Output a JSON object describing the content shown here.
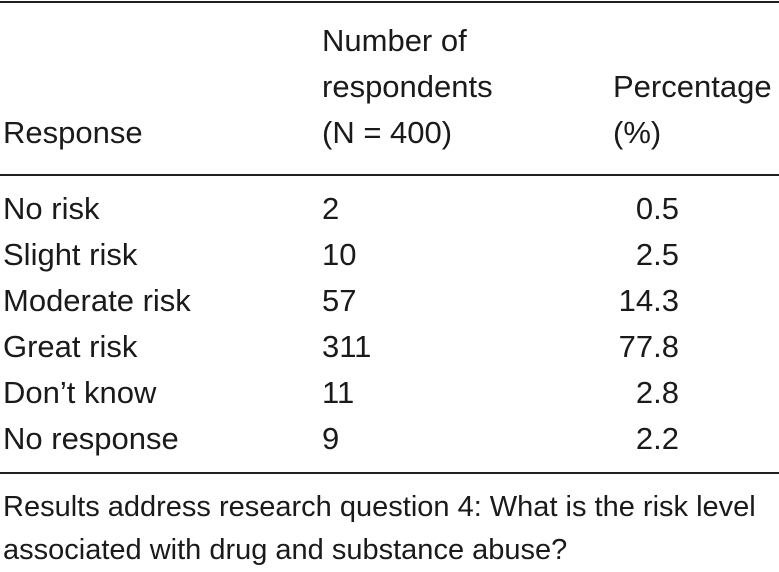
{
  "table": {
    "headers": {
      "response": "Response",
      "number_line1": "Number of",
      "number_line2": "respondents",
      "number_line3": "(N = 400)",
      "percent_line1": "Percentage",
      "percent_line2": "(%)"
    },
    "rows": [
      {
        "response": "No risk",
        "number": "2",
        "percentage": "0.5"
      },
      {
        "response": "Slight risk",
        "number": "10",
        "percentage": "2.5"
      },
      {
        "response": "Moderate risk",
        "number": "57",
        "percentage": "14.3"
      },
      {
        "response": "Great risk",
        "number": "311",
        "percentage": "77.8"
      },
      {
        "response": "Don’t know",
        "number": "11",
        "percentage": "2.8"
      },
      {
        "response": "No response",
        "number": "9",
        "percentage": "2.2"
      }
    ]
  },
  "footnote": "Results address research question 4: What is the risk level associated with drug and substance abuse?"
}
